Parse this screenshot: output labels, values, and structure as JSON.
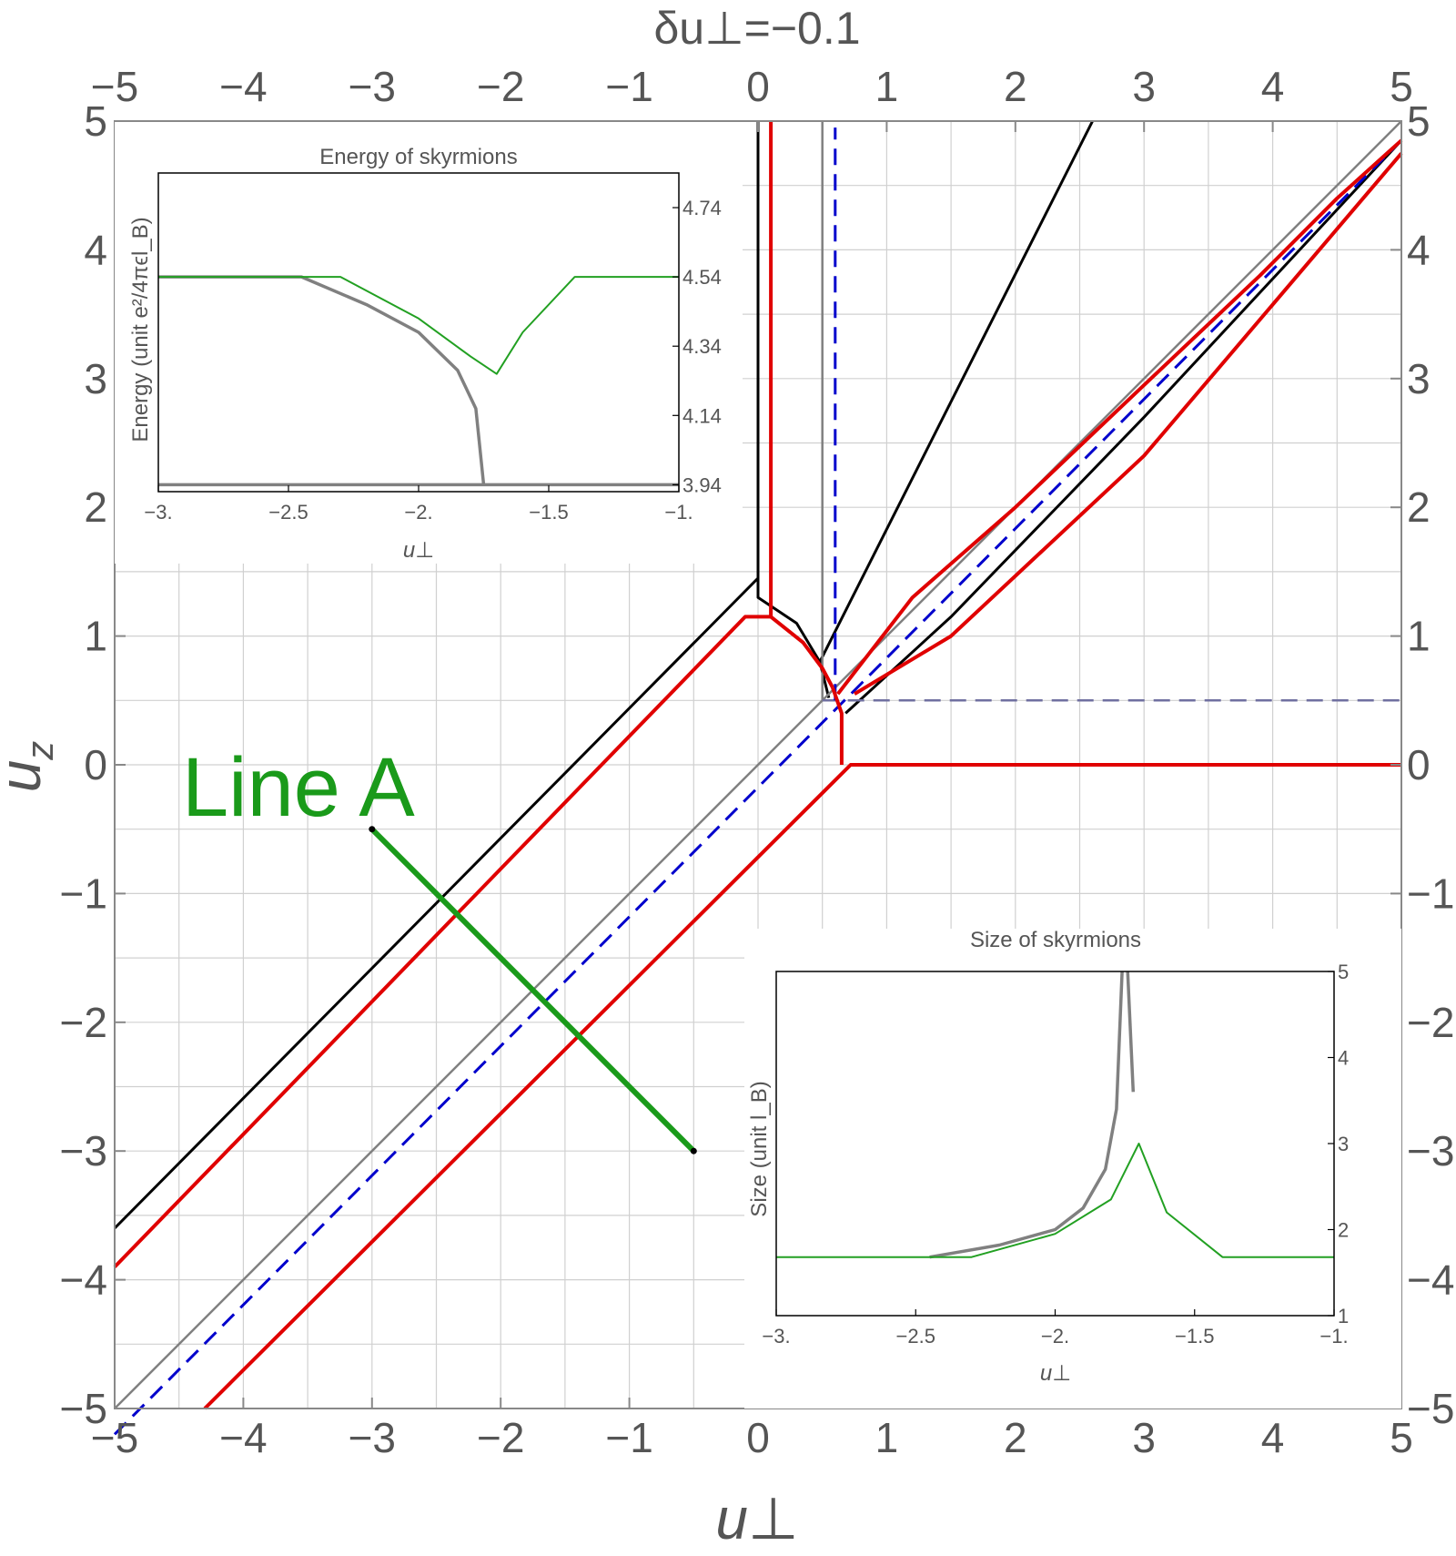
{
  "chart_data": [
    {
      "type": "line",
      "title": "δu⊥=−0.1",
      "xlabel": "u⊥",
      "ylabel": "u_z",
      "xlim": [
        -5,
        5
      ],
      "ylim": [
        -5,
        5
      ],
      "xticks": [
        "−5",
        "−4",
        "−3",
        "−2",
        "−1",
        "0",
        "1",
        "2",
        "3",
        "4",
        "5"
      ],
      "yticks": [
        "−5",
        "−4",
        "−3",
        "−2",
        "−1",
        "0",
        "1",
        "2",
        "3",
        "4",
        "5"
      ],
      "grid": true,
      "series": [
        {
          "color": "#000000",
          "style": "solid",
          "points": [
            [
              -5,
              -3.6
            ],
            [
              0,
              1.45
            ],
            [
              0,
              5
            ]
          ]
        },
        {
          "color": "#000000",
          "style": "solid",
          "points": [
            [
              0,
              1.45
            ],
            [
              0,
              1.3
            ],
            [
              0.3,
              1.1
            ],
            [
              0.48,
              0.8
            ],
            [
              0.55,
              0.52
            ]
          ]
        },
        {
          "color": "#000000",
          "style": "solid",
          "points": [
            [
              0.48,
              0.8
            ],
            [
              2.6,
              5
            ]
          ]
        },
        {
          "color": "#000000",
          "style": "solid",
          "points": [
            [
              0.68,
              0.4
            ],
            [
              1.5,
              1.15
            ],
            [
              3.0,
              2.7
            ],
            [
              5,
              4.85
            ]
          ]
        },
        {
          "color": "#808080",
          "style": "solid",
          "points": [
            [
              -5,
              -5
            ],
            [
              5,
              5
            ]
          ]
        },
        {
          "color": "#808080",
          "style": "solid",
          "points": [
            [
              0.5,
              0.5
            ],
            [
              0.5,
              5
            ]
          ]
        },
        {
          "color": "#7070a0",
          "style": "dashed",
          "points": [
            [
              0.5,
              0.5
            ],
            [
              5,
              0.5
            ]
          ]
        },
        {
          "color": "#0000cc",
          "style": "dashed",
          "points": [
            [
              -5,
              -5.2
            ],
            [
              5,
              4.85
            ]
          ]
        },
        {
          "color": "#0000cc",
          "style": "dashed",
          "points": [
            [
              0.6,
              0.5
            ],
            [
              0.6,
              4.95
            ]
          ]
        },
        {
          "color": "#e00000",
          "style": "solid",
          "points": [
            [
              -5,
              -3.9
            ],
            [
              -0.1,
              1.15
            ],
            [
              0.1,
              1.15
            ],
            [
              0.1,
              5
            ]
          ]
        },
        {
          "color": "#e00000",
          "style": "solid",
          "points": [
            [
              0.1,
              1.15
            ],
            [
              0.35,
              0.95
            ],
            [
              0.5,
              0.75
            ],
            [
              0.58,
              0.6
            ]
          ]
        },
        {
          "color": "#e00000",
          "style": "solid",
          "points": [
            [
              -4.3,
              -5
            ],
            [
              0.72,
              0
            ],
            [
              5,
              0
            ]
          ]
        },
        {
          "color": "#e00000",
          "style": "solid",
          "points": [
            [
              0.65,
              0.0
            ],
            [
              0.65,
              0.4
            ],
            [
              0.58,
              0.6
            ]
          ]
        },
        {
          "color": "#e00000",
          "style": "solid",
          "points": [
            [
              0.62,
              0.55
            ],
            [
              1.2,
              1.3
            ],
            [
              2.0,
              2.0
            ],
            [
              3.0,
              2.95
            ],
            [
              3.9,
              3.8
            ],
            [
              4.5,
              4.4
            ],
            [
              5,
              4.85
            ]
          ]
        },
        {
          "color": "#e00000",
          "style": "solid",
          "points": [
            [
              0.75,
              0.55
            ],
            [
              1.5,
              1.0
            ],
            [
              3.0,
              2.4
            ],
            [
              5,
              4.75
            ]
          ]
        }
      ]
    },
    {
      "type": "line",
      "title": "Energy of skyrmions",
      "xlabel": "u⊥",
      "ylabel": "Energy (unit e²/4πϵl_B)",
      "xlim": [
        -3,
        -1
      ],
      "ylim": [
        3.92,
        4.84
      ],
      "xticks": [
        "−3.",
        "−2.5",
        "−2.",
        "−1.5",
        "−1."
      ],
      "yticks": [
        "3.94",
        "4.14",
        "4.34",
        "4.54",
        "4.74"
      ],
      "series": [
        {
          "color": "#808080",
          "points": [
            [
              -3,
              4.54
            ],
            [
              -2.45,
              4.54
            ],
            [
              -2.2,
              4.46
            ],
            [
              -2.0,
              4.38
            ],
            [
              -1.85,
              4.27
            ],
            [
              -1.78,
              4.16
            ],
            [
              -1.75,
              3.94
            ]
          ]
        },
        {
          "color": "#808080",
          "points": [
            [
              -3,
              3.94
            ],
            [
              -1,
              3.94
            ]
          ]
        },
        {
          "color": "#22a022",
          "points": [
            [
              -3,
              4.54
            ],
            [
              -2.3,
              4.54
            ],
            [
              -2.0,
              4.42
            ],
            [
              -1.8,
              4.31
            ],
            [
              -1.7,
              4.26
            ],
            [
              -1.6,
              4.38
            ],
            [
              -1.4,
              4.54
            ],
            [
              -1,
              4.54
            ]
          ]
        }
      ]
    },
    {
      "type": "line",
      "title": "Size of skyrmions",
      "xlabel": "u⊥",
      "ylabel": "Size (unit l_B)",
      "xlim": [
        -3,
        -1
      ],
      "ylim": [
        1,
        5
      ],
      "xticks": [
        "−3.",
        "−2.5",
        "−2.",
        "−1.5",
        "−1."
      ],
      "yticks": [
        "1",
        "2",
        "3",
        "4",
        "5"
      ],
      "series": [
        {
          "color": "#808080",
          "points": [
            [
              -2.45,
              1.68
            ],
            [
              -2.2,
              1.82
            ],
            [
              -2.0,
              2.0
            ],
            [
              -1.9,
              2.25
            ],
            [
              -1.82,
              2.7
            ],
            [
              -1.78,
              3.4
            ],
            [
              -1.76,
              5
            ]
          ]
        },
        {
          "color": "#808080",
          "points": [
            [
              -1.74,
              5
            ],
            [
              -1.72,
              3.6
            ]
          ]
        },
        {
          "color": "#22a022",
          "points": [
            [
              -3,
              1.68
            ],
            [
              -2.3,
              1.68
            ],
            [
              -2.0,
              1.95
            ],
            [
              -1.8,
              2.35
            ],
            [
              -1.7,
              3.0
            ],
            [
              -1.6,
              2.2
            ],
            [
              -1.4,
              1.68
            ],
            [
              -1,
              1.68
            ]
          ]
        }
      ]
    }
  ],
  "annotation": {
    "label": "Line A",
    "color": "#1a9a1a",
    "points": [
      [
        -3,
        -0.5
      ],
      [
        -0.5,
        -3
      ]
    ]
  }
}
